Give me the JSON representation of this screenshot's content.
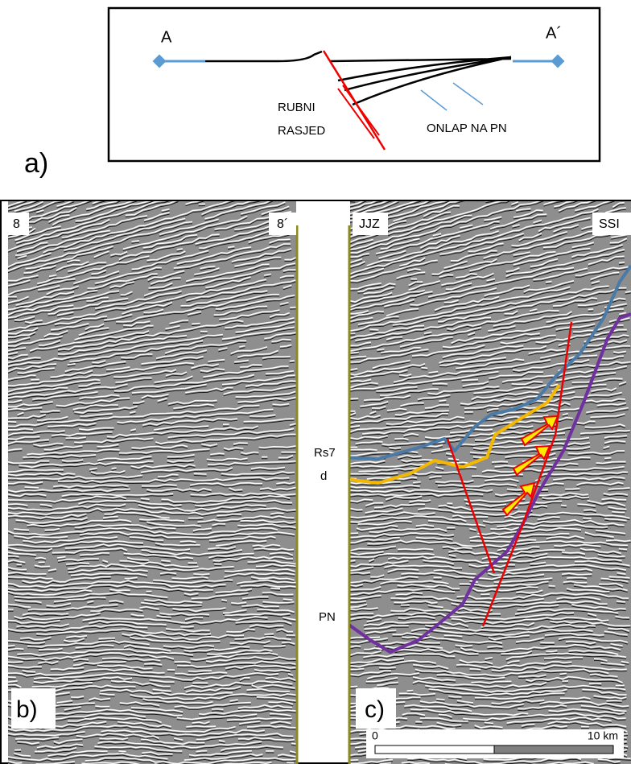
{
  "panel_a": {
    "label": "a)",
    "point_start": "A",
    "point_end": "A´",
    "fault_label": [
      "RUBNI",
      "RASJED"
    ],
    "onlap_label": "ONLAP NA PN"
  },
  "panel_b": {
    "label": "b)",
    "left": "8",
    "right": "8´"
  },
  "panel_c": {
    "label": "c)",
    "left": "JJZ",
    "right": "SSI",
    "horizons": [
      "Rs7",
      "d",
      "PN"
    ],
    "scale": {
      "start": "0",
      "end": "10 km"
    }
  }
}
